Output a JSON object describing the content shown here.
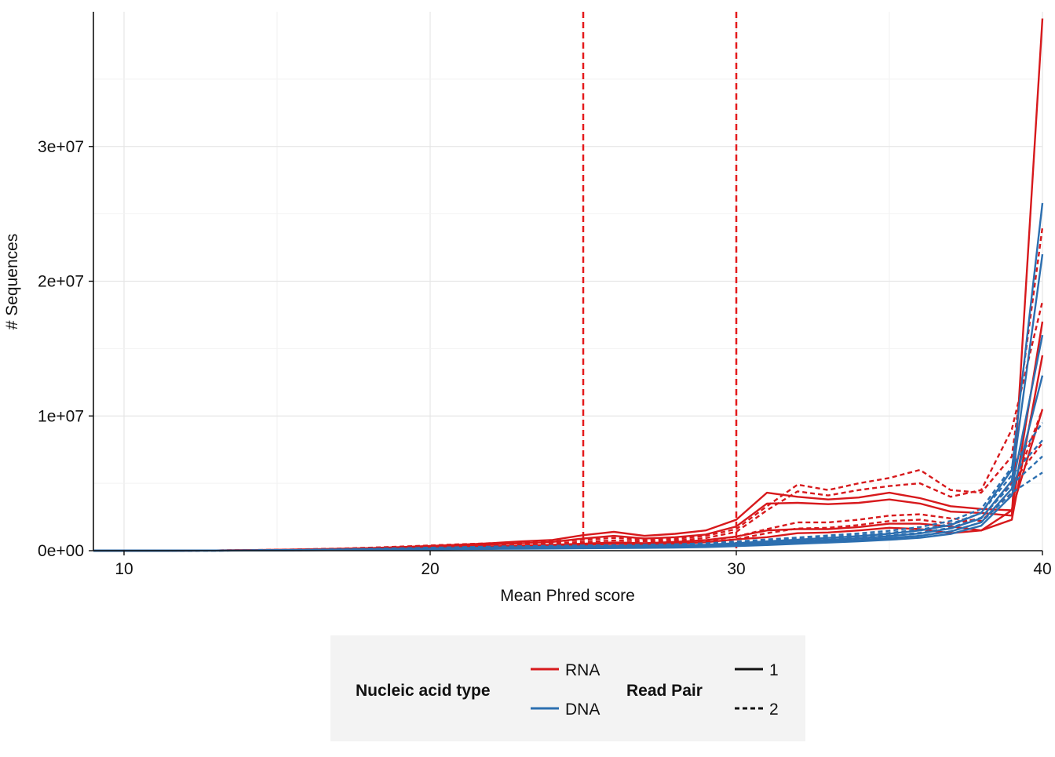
{
  "chart_data": {
    "type": "line",
    "xlabel": "Mean Phred score",
    "ylabel": "# Sequences",
    "xlim": [
      9,
      40
    ],
    "ylim": [
      0,
      40000000
    ],
    "x_ticks": [
      10,
      20,
      30,
      40
    ],
    "x_tick_labels": [
      "10",
      "20",
      "30",
      "40"
    ],
    "y_ticks": [
      0,
      10000000,
      20000000,
      30000000
    ],
    "y_tick_labels": [
      "0e+00",
      "1e+07",
      "2e+07",
      "3e+07"
    ],
    "grid": true,
    "thresholds": [
      {
        "x": 25,
        "color": "#e41a1c",
        "style": "dashed"
      },
      {
        "x": 30,
        "color": "#e41a1c",
        "style": "dashed"
      }
    ],
    "colors": {
      "RNA": "#d7191c",
      "DNA": "#2c6fb0"
    },
    "x": [
      9,
      10,
      11,
      12,
      13,
      14,
      15,
      16,
      17,
      18,
      19,
      20,
      21,
      22,
      23,
      24,
      25,
      26,
      27,
      28,
      29,
      30,
      31,
      32,
      33,
      34,
      35,
      36,
      37,
      38,
      39,
      40
    ],
    "series": [
      {
        "type": "RNA",
        "pair": "1",
        "values": [
          0,
          0,
          0,
          10000,
          20000,
          40000,
          60000,
          90000,
          120000,
          160000,
          220000,
          300000,
          380000,
          460000,
          560000,
          650000,
          900000,
          1100000,
          900000,
          1000000,
          1200000,
          1800000,
          3500000,
          3550000,
          3450000,
          3550000,
          3800000,
          3500000,
          2900000,
          2800000,
          2600000,
          39500000
        ]
      },
      {
        "type": "RNA",
        "pair": "1",
        "values": [
          0,
          0,
          0,
          10000,
          20000,
          40000,
          60000,
          100000,
          140000,
          190000,
          260000,
          350000,
          450000,
          560000,
          690000,
          800000,
          1150000,
          1400000,
          1100000,
          1250000,
          1500000,
          2300000,
          4300000,
          4000000,
          3800000,
          3950000,
          4300000,
          3900000,
          3300000,
          3100000,
          3000000,
          17000000
        ]
      },
      {
        "type": "RNA",
        "pair": "1",
        "values": [
          0,
          0,
          0,
          5000,
          10000,
          20000,
          30000,
          50000,
          80000,
          110000,
          150000,
          210000,
          270000,
          320000,
          380000,
          440000,
          520000,
          620000,
          560000,
          650000,
          780000,
          1050000,
          1500000,
          1600000,
          1600000,
          1750000,
          2000000,
          2000000,
          1800000,
          1500000,
          2300000,
          14500000
        ]
      },
      {
        "type": "RNA",
        "pair": "1",
        "values": [
          0,
          0,
          0,
          5000,
          10000,
          15000,
          25000,
          40000,
          60000,
          90000,
          120000,
          160000,
          200000,
          250000,
          300000,
          360000,
          430000,
          500000,
          460000,
          530000,
          630000,
          840000,
          1000000,
          1300000,
          1350000,
          1500000,
          1700000,
          1600000,
          1300000,
          1500000,
          3000000,
          10500000
        ]
      },
      {
        "type": "RNA",
        "pair": "2",
        "values": [
          0,
          0,
          0,
          10000,
          20000,
          40000,
          70000,
          110000,
          160000,
          220000,
          300000,
          390000,
          480000,
          560000,
          650000,
          720000,
          800000,
          950000,
          820000,
          880000,
          1100000,
          1600000,
          3300000,
          4900000,
          4500000,
          5000000,
          5400000,
          6000000,
          4500000,
          4300000,
          7000000,
          24000000
        ]
      },
      {
        "type": "RNA",
        "pair": "2",
        "values": [
          0,
          0,
          0,
          10000,
          20000,
          35000,
          60000,
          90000,
          130000,
          180000,
          240000,
          310000,
          380000,
          440000,
          510000,
          570000,
          640000,
          760000,
          690000,
          750000,
          930000,
          1400000,
          3000000,
          4400000,
          4100000,
          4500000,
          4800000,
          5000000,
          4000000,
          4500000,
          9000000,
          18500000
        ]
      },
      {
        "type": "RNA",
        "pair": "2",
        "values": [
          0,
          0,
          0,
          5000,
          10000,
          20000,
          35000,
          55000,
          80000,
          110000,
          150000,
          200000,
          250000,
          300000,
          350000,
          400000,
          460000,
          540000,
          500000,
          560000,
          700000,
          1050000,
          1600000,
          2100000,
          2100000,
          2300000,
          2600000,
          2700000,
          2400000,
          2200000,
          4300000,
          10500000
        ]
      },
      {
        "type": "RNA",
        "pair": "2",
        "values": [
          0,
          0,
          0,
          5000,
          10000,
          15000,
          25000,
          40000,
          60000,
          85000,
          115000,
          150000,
          190000,
          230000,
          270000,
          310000,
          360000,
          430000,
          400000,
          450000,
          560000,
          850000,
          1300000,
          1650000,
          1700000,
          1900000,
          2200000,
          2300000,
          2000000,
          2400000,
          5000000,
          8000000
        ]
      },
      {
        "type": "DNA",
        "pair": "1",
        "values": [
          0,
          0,
          0,
          5000,
          10000,
          20000,
          35000,
          55000,
          80000,
          110000,
          140000,
          170000,
          200000,
          230000,
          260000,
          290000,
          320000,
          340000,
          370000,
          400000,
          450000,
          560000,
          690000,
          820000,
          950000,
          1080000,
          1260000,
          1500000,
          1900000,
          2800000,
          6000000,
          25800000
        ]
      },
      {
        "type": "DNA",
        "pair": "1",
        "values": [
          0,
          0,
          0,
          5000,
          10000,
          20000,
          30000,
          45000,
          65000,
          90000,
          115000,
          140000,
          165000,
          190000,
          215000,
          240000,
          265000,
          285000,
          310000,
          340000,
          380000,
          470000,
          580000,
          700000,
          810000,
          920000,
          1080000,
          1280000,
          1650000,
          2400000,
          5200000,
          22000000
        ]
      },
      {
        "type": "DNA",
        "pair": "1",
        "values": [
          0,
          0,
          0,
          5000,
          8000,
          15000,
          25000,
          38000,
          55000,
          75000,
          95000,
          115000,
          135000,
          155000,
          175000,
          195000,
          215000,
          235000,
          255000,
          280000,
          320000,
          400000,
          490000,
          590000,
          690000,
          790000,
          930000,
          1100000,
          1420000,
          2100000,
          4600000,
          16000000
        ]
      },
      {
        "type": "DNA",
        "pair": "1",
        "values": [
          0,
          0,
          0,
          4000,
          7000,
          12000,
          20000,
          30000,
          45000,
          60000,
          78000,
          95000,
          112000,
          128000,
          145000,
          160000,
          178000,
          195000,
          212000,
          235000,
          270000,
          340000,
          420000,
          510000,
          600000,
          690000,
          810000,
          960000,
          1240000,
          1850000,
          4100000,
          13000000
        ]
      },
      {
        "type": "DNA",
        "pair": "2",
        "values": [
          0,
          0,
          0,
          5000,
          12000,
          25000,
          45000,
          70000,
          100000,
          140000,
          180000,
          220000,
          260000,
          300000,
          330000,
          360000,
          390000,
          410000,
          440000,
          480000,
          550000,
          680000,
          830000,
          980000,
          1130000,
          1280000,
          1480000,
          1750000,
          2200000,
          3100000,
          6200000,
          9500000
        ]
      },
      {
        "type": "DNA",
        "pair": "2",
        "values": [
          0,
          0,
          0,
          5000,
          10000,
          20000,
          35000,
          55000,
          80000,
          110000,
          140000,
          175000,
          210000,
          240000,
          270000,
          300000,
          330000,
          350000,
          380000,
          410000,
          470000,
          580000,
          720000,
          860000,
          1000000,
          1140000,
          1320000,
          1560000,
          1980000,
          2800000,
          5600000,
          8200000
        ]
      },
      {
        "type": "DNA",
        "pair": "2",
        "values": [
          0,
          0,
          0,
          4000,
          8000,
          15000,
          28000,
          45000,
          65000,
          90000,
          115000,
          140000,
          165000,
          190000,
          215000,
          240000,
          265000,
          285000,
          310000,
          340000,
          390000,
          480000,
          600000,
          720000,
          840000,
          960000,
          1120000,
          1330000,
          1700000,
          2450000,
          4900000,
          7000000
        ]
      },
      {
        "type": "DNA",
        "pair": "2",
        "values": [
          0,
          0,
          0,
          4000,
          7000,
          12000,
          22000,
          35000,
          50000,
          70000,
          90000,
          110000,
          130000,
          150000,
          170000,
          190000,
          210000,
          230000,
          250000,
          275000,
          320000,
          400000,
          500000,
          600000,
          700000,
          800000,
          940000,
          1120000,
          1440000,
          2100000,
          4300000,
          5800000
        ]
      }
    ],
    "legend": {
      "position": "bottom",
      "groups": [
        {
          "title": "Nucleic acid type",
          "entries": [
            {
              "label": "RNA",
              "color": "#d7191c",
              "style": "solid"
            },
            {
              "label": "DNA",
              "color": "#2c6fb0",
              "style": "solid"
            }
          ]
        },
        {
          "title": "Read Pair",
          "entries": [
            {
              "label": "1",
              "color": "#111111",
              "style": "solid"
            },
            {
              "label": "2",
              "color": "#111111",
              "style": "dashed"
            }
          ]
        }
      ]
    }
  }
}
